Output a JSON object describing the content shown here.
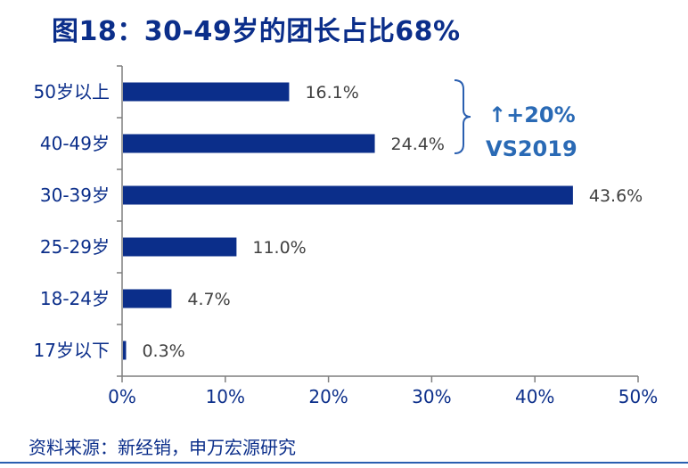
{
  "title": "图18：30-49岁的团长占比68%",
  "source": "资料来源：新经销，申万宏源研究",
  "annotation": {
    "line1": "↑+20%",
    "line2": "VS2019"
  },
  "colors": {
    "bar": "#0b2e8a",
    "axis_text": "#0b2e8a",
    "value_text": "#404040",
    "annotation": "#2a6ab5",
    "bracket": "#2a5fb0"
  },
  "chart_data": {
    "type": "bar",
    "orientation": "horizontal",
    "categories": [
      "50岁以上",
      "40-49岁",
      "30-39岁",
      "25-29岁",
      "18-24岁",
      "17岁以下"
    ],
    "values": [
      16.1,
      24.4,
      43.6,
      11.0,
      4.7,
      0.3
    ],
    "value_labels": [
      "16.1%",
      "24.4%",
      "43.6%",
      "11.0%",
      "4.7%",
      "0.3%"
    ],
    "x_ticks": [
      "0%",
      "10%",
      "20%",
      "30%",
      "40%",
      "50%"
    ],
    "xlim": [
      0,
      50
    ],
    "xlabel": "",
    "ylabel": "",
    "grid": false,
    "legend": "none"
  }
}
